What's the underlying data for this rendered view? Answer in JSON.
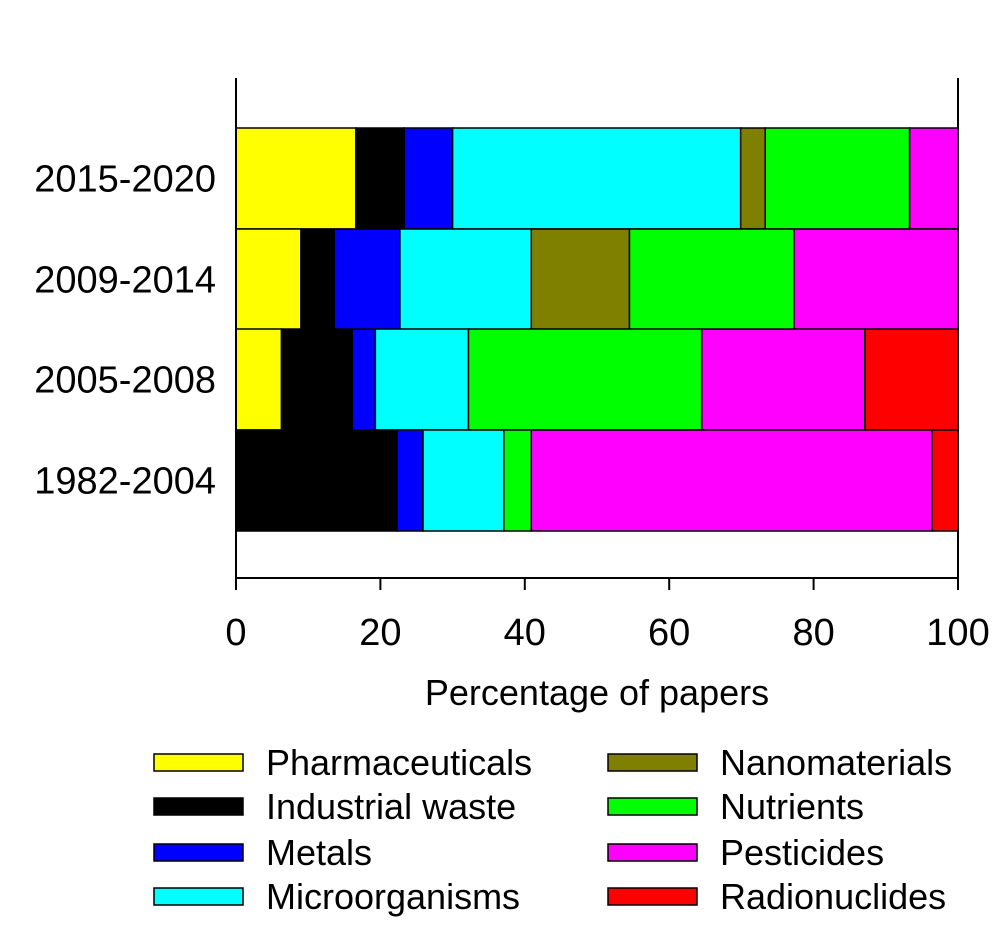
{
  "chart_data": {
    "type": "bar",
    "orientation": "horizontal",
    "stacked": true,
    "title": "",
    "xlabel": "Percentage of papers",
    "ylabel": "",
    "xlim": [
      0,
      100
    ],
    "xticks": [
      "0",
      "20",
      "40",
      "60",
      "80",
      "100"
    ],
    "categories": [
      "2015-2020",
      "2009-2014",
      "2005-2008",
      "1982-2004"
    ],
    "grid": false,
    "legend_position": "bottom",
    "series": [
      {
        "name": "Pharmaceuticals",
        "color": "#ffff00",
        "values": [
          16.6,
          9.0,
          6.3,
          0
        ]
      },
      {
        "name": "Industrial waste",
        "color": "#000000",
        "values": [
          6.7,
          4.6,
          9.8,
          22.3
        ]
      },
      {
        "name": "Metals",
        "color": "#0000ff",
        "values": [
          6.7,
          9.1,
          3.2,
          3.6
        ]
      },
      {
        "name": "Microorganisms",
        "color": "#00ffff",
        "values": [
          39.9,
          18.2,
          12.9,
          11.2
        ]
      },
      {
        "name": "Nanomaterials",
        "color": "#808000",
        "values": [
          3.4,
          13.6,
          0,
          0
        ]
      },
      {
        "name": "Nutrients",
        "color": "#00ff00",
        "values": [
          20.0,
          22.8,
          32.3,
          3.8
        ]
      },
      {
        "name": "Pesticides",
        "color": "#ff00ff",
        "values": [
          6.7,
          22.7,
          22.6,
          55.5
        ]
      },
      {
        "name": "Radionuclides",
        "color": "#ff0000",
        "values": [
          0,
          0,
          12.9,
          3.6
        ]
      }
    ]
  }
}
